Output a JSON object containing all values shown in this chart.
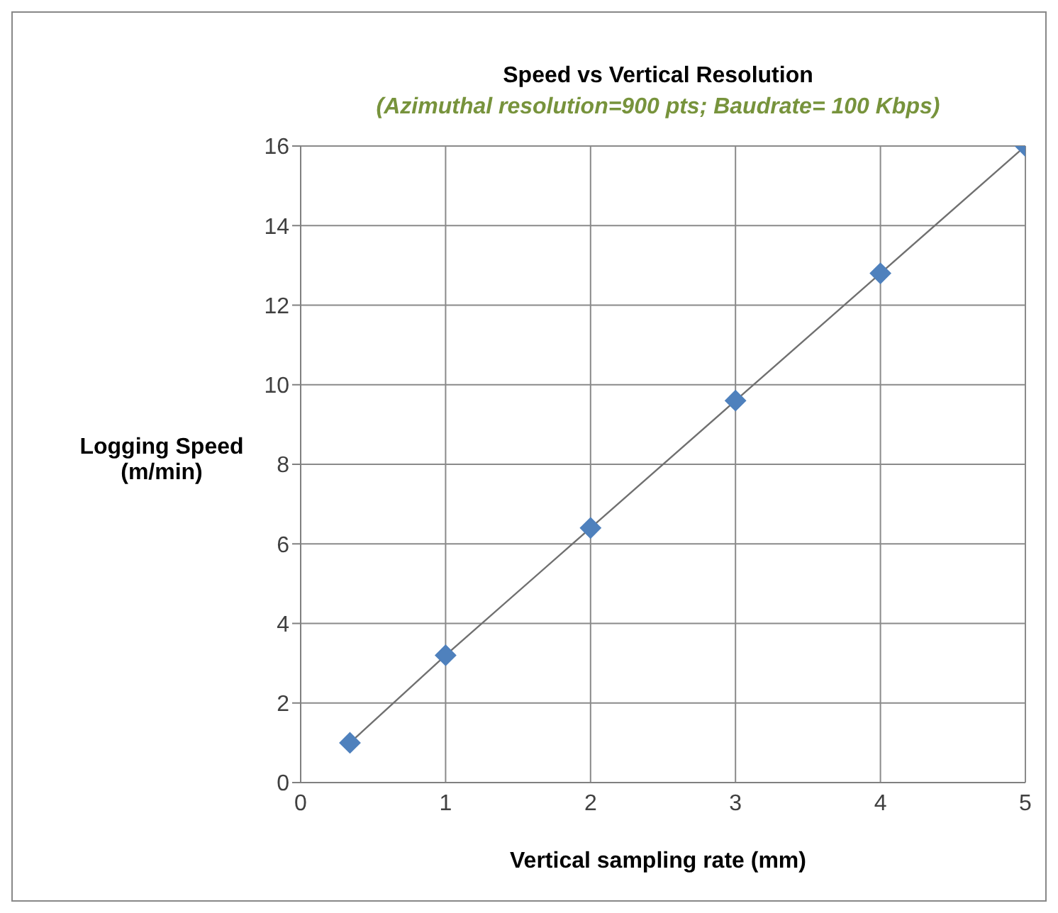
{
  "chart_data": {
    "type": "line",
    "title": "Speed vs Vertical Resolution",
    "subtitle": "(Azimuthal resolution=900 pts; Baudrate= 100 Kbps)",
    "xlabel": "Vertical sampling rate (mm)",
    "ylabel": "Logging Speed (m/min)",
    "series": [
      {
        "color": "#4f81bd",
        "x": [
          0.34,
          1,
          2,
          3,
          4,
          5
        ],
        "values": [
          1,
          3.2,
          6.4,
          9.6,
          12.8,
          16
        ]
      }
    ],
    "xlim": [
      0,
      5
    ],
    "xticks": [
      0,
      1,
      2,
      3,
      4,
      5
    ],
    "ylim": [
      0,
      16
    ],
    "yticks": [
      0,
      2,
      4,
      6,
      8,
      10,
      12,
      14,
      16
    ],
    "grid": true,
    "legend": false,
    "marker": "diamond",
    "line_style": "solid"
  }
}
